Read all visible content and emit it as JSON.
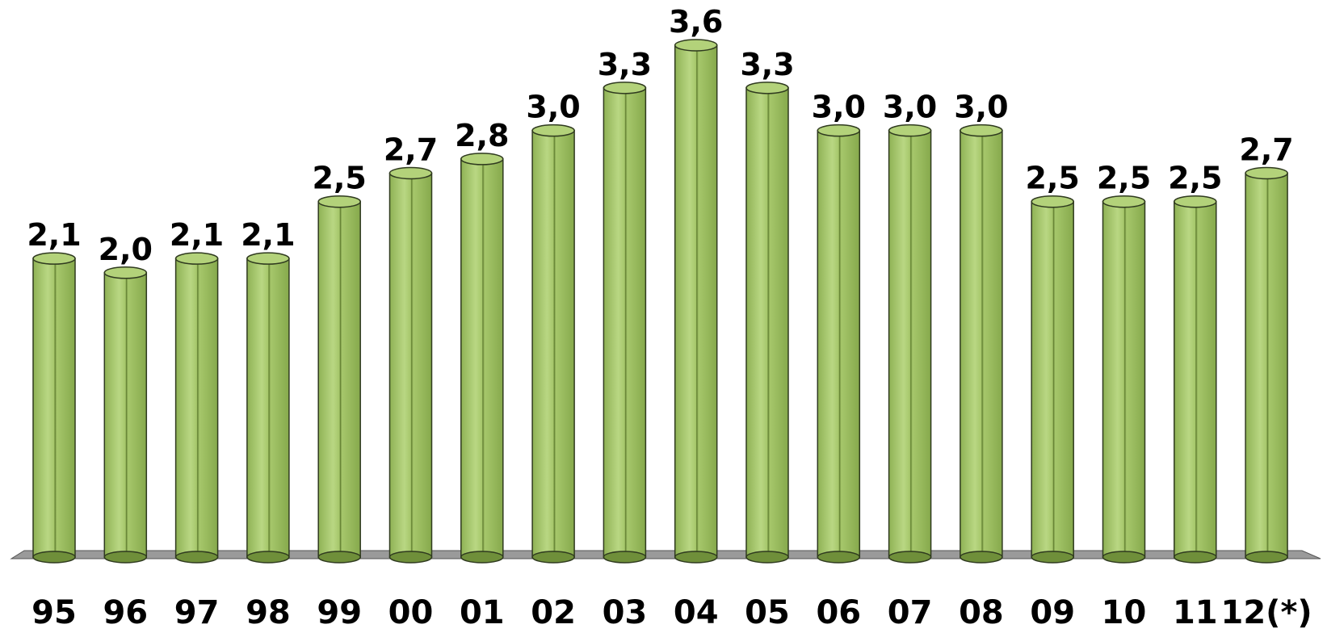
{
  "chart_data": {
    "type": "bar",
    "style": "3d-cylinder",
    "categories": [
      "95",
      "96",
      "97",
      "98",
      "99",
      "00",
      "01",
      "02",
      "03",
      "04",
      "05",
      "06",
      "07",
      "08",
      "09",
      "10",
      "11",
      "12(*)"
    ],
    "values": [
      2.1,
      2.0,
      2.1,
      2.1,
      2.5,
      2.7,
      2.8,
      3.0,
      3.3,
      3.6,
      3.3,
      3.0,
      3.0,
      3.0,
      2.5,
      2.5,
      2.5,
      2.7
    ],
    "value_labels": [
      "2,1",
      "2,0",
      "2,1",
      "2,1",
      "2,5",
      "2,7",
      "2,8",
      "3,0",
      "3,3",
      "3,6",
      "3,3",
      "3,0",
      "3,0",
      "3,0",
      "2,5",
      "2,5",
      "2,5",
      "2,7"
    ],
    "ylim": [
      0,
      3.6
    ],
    "grid": false,
    "legend": "none",
    "colors": {
      "bar_fill": "#a9c96e",
      "bar_dark": "#6f8f3a",
      "bar_stroke": "#2f3a1f",
      "floor": "#9a9a9a"
    }
  }
}
